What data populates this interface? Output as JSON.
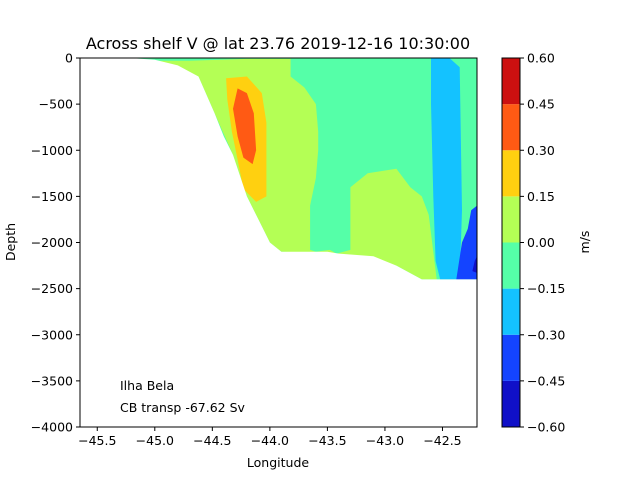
{
  "chart_data": {
    "type": "contourf",
    "title": "Across shelf V @ lat 23.76 2019-12-16 10:30:00",
    "xlabel": "Longitude",
    "ylabel": "Depth",
    "xlim": [
      -45.65,
      -42.2
    ],
    "ylim": [
      -4000,
      0
    ],
    "xticks": [
      -45.5,
      -45.0,
      -44.5,
      -44.0,
      -43.5,
      -43.0,
      -42.5
    ],
    "xtick_labels": [
      "−45.5",
      "−45.0",
      "−44.5",
      "−44.0",
      "−43.5",
      "−43.0",
      "−42.5"
    ],
    "yticks": [
      0,
      -500,
      -1000,
      -1500,
      -2000,
      -2500,
      -3000,
      -3500,
      -4000
    ],
    "ytick_labels": [
      "0",
      "−500",
      "−1000",
      "−1500",
      "−2000",
      "−2500",
      "−3000",
      "−3500",
      "−4000"
    ],
    "colorbar": {
      "label": "m/s",
      "levels": [
        -0.6,
        -0.45,
        -0.3,
        -0.15,
        0.0,
        0.15,
        0.3,
        0.45,
        0.6
      ],
      "level_labels": [
        "−0.60",
        "−0.45",
        "−0.30",
        "−0.15",
        "0.00",
        "0.15",
        "0.30",
        "0.45",
        "0.60"
      ],
      "colors": [
        "#1010c8",
        "#1444ff",
        "#14c2ff",
        "#55ffa8",
        "#b4ff55",
        "#ffd010",
        "#ff5a14",
        "#cc1010"
      ]
    },
    "regions": [
      {
        "range": [
          0.0,
          0.15
        ],
        "points": [
          [
            -45.22,
            -30
          ],
          [
            -44.7,
            -30
          ],
          [
            -44.2,
            -10
          ],
          [
            -43.82,
            -10
          ],
          [
            -43.82,
            -200
          ],
          [
            -43.7,
            -320
          ],
          [
            -43.6,
            -500
          ],
          [
            -43.58,
            -800
          ],
          [
            -43.58,
            -1000
          ],
          [
            -43.6,
            -1300
          ],
          [
            -43.65,
            -1600
          ],
          [
            -43.65,
            -2080
          ],
          [
            -43.6,
            -2100
          ],
          [
            -43.48,
            -2080
          ],
          [
            -43.42,
            -2120
          ],
          [
            -43.3,
            -2080
          ],
          [
            -43.3,
            -1400
          ],
          [
            -43.15,
            -1250
          ],
          [
            -42.9,
            -1200
          ],
          [
            -42.78,
            -1400
          ],
          [
            -42.68,
            -1500
          ],
          [
            -42.62,
            -1700
          ],
          [
            -42.58,
            -2100
          ],
          [
            -42.55,
            -2400
          ],
          [
            -42.68,
            -2400
          ],
          [
            -42.9,
            -2250
          ],
          [
            -43.1,
            -2180
          ],
          [
            -43.5,
            -2120
          ],
          [
            -43.9,
            -2100
          ],
          [
            -44.0,
            -2000
          ],
          [
            -44.1,
            -1750
          ],
          [
            -44.2,
            -1500
          ],
          [
            -44.32,
            -1050
          ],
          [
            -44.48,
            -600
          ],
          [
            -44.62,
            -200
          ],
          [
            -45.0,
            -60
          ]
        ]
      },
      {
        "range": [
          0.15,
          0.3
        ],
        "points": [
          [
            -44.38,
            -220
          ],
          [
            -44.2,
            -200
          ],
          [
            -44.07,
            -380
          ],
          [
            -44.03,
            -700
          ],
          [
            -44.03,
            -1500
          ],
          [
            -44.12,
            -1560
          ],
          [
            -44.23,
            -1420
          ],
          [
            -44.28,
            -1100
          ],
          [
            -44.33,
            -800
          ],
          [
            -44.37,
            -450
          ]
        ]
      },
      {
        "range": [
          0.3,
          0.45
        ],
        "points": [
          [
            -44.28,
            -330
          ],
          [
            -44.2,
            -380
          ],
          [
            -44.14,
            -600
          ],
          [
            -44.12,
            -1000
          ],
          [
            -44.15,
            -1150
          ],
          [
            -44.23,
            -1080
          ],
          [
            -44.28,
            -850
          ],
          [
            -44.32,
            -550
          ]
        ]
      },
      {
        "range": [
          -0.3,
          -0.15
        ],
        "points": [
          [
            -42.6,
            0
          ],
          [
            -42.44,
            0
          ],
          [
            -42.35,
            -100
          ],
          [
            -42.33,
            -1650
          ],
          [
            -42.35,
            -2400
          ],
          [
            -42.52,
            -2400
          ],
          [
            -42.56,
            -2200
          ],
          [
            -42.58,
            -1500
          ],
          [
            -42.6,
            -500
          ]
        ]
      },
      {
        "range": [
          -0.45,
          -0.3
        ],
        "points": [
          [
            -42.25,
            -1650
          ],
          [
            -42.2,
            -1600
          ],
          [
            -42.2,
            -2400
          ],
          [
            -42.38,
            -2400
          ],
          [
            -42.33,
            -2000
          ],
          [
            -42.28,
            -1850
          ]
        ]
      },
      {
        "range": [
          -0.6,
          -0.45
        ],
        "points": [
          [
            -42.22,
            -2200
          ],
          [
            -42.2,
            -2150
          ],
          [
            -42.2,
            -2330
          ],
          [
            -42.24,
            -2310
          ]
        ]
      }
    ],
    "base_region": {
      "range": [
        -0.15,
        0.0
      ]
    },
    "seafloor_polygon": [
      [
        -45.65,
        0
      ],
      [
        -45.22,
        0
      ],
      [
        -45.0,
        -20
      ],
      [
        -44.8,
        -80
      ],
      [
        -44.62,
        -200
      ],
      [
        -44.48,
        -600
      ],
      [
        -44.4,
        -850
      ],
      [
        -44.32,
        -1050
      ],
      [
        -44.2,
        -1500
      ],
      [
        -44.1,
        -1750
      ],
      [
        -44.0,
        -2000
      ],
      [
        -43.9,
        -2100
      ],
      [
        -43.5,
        -2100
      ],
      [
        -43.4,
        -2120
      ],
      [
        -43.1,
        -2150
      ],
      [
        -42.9,
        -2250
      ],
      [
        -42.68,
        -2400
      ],
      [
        -42.2,
        -2400
      ],
      [
        -42.2,
        -4000
      ],
      [
        -45.65,
        -4000
      ]
    ],
    "annotations": [
      "Ilha Bela",
      "CB transp -67.62 Sv"
    ]
  }
}
